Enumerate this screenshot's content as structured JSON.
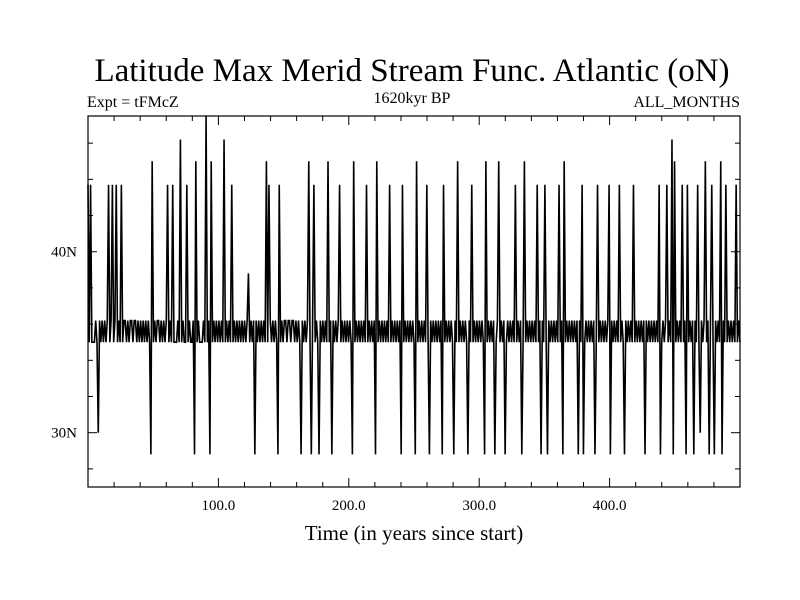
{
  "chart_data": {
    "type": "line",
    "title": "Latitude Max Merid Stream Func. Atlantic (oN)",
    "subtitle_left": "Expt = tFMcZ",
    "subtitle_center": "1620kyr BP",
    "subtitle_right": "ALL_MONTHS",
    "xlabel": "Time (in years since start)",
    "ylabel": "",
    "xlim": [
      0,
      500
    ],
    "ylim": [
      27,
      47.5
    ],
    "x_ticks": [
      100,
      200,
      300,
      400
    ],
    "x_tick_labels": [
      "100.0",
      "200.0",
      "300.0",
      "400.0"
    ],
    "y_ticks": [
      30,
      40
    ],
    "y_tick_labels": [
      "30N",
      "40N"
    ],
    "grid": false,
    "series": [
      {
        "values": [
          43.7,
          35,
          43.7,
          35,
          35,
          35,
          36.2,
          35,
          30,
          36.2,
          35,
          36.2,
          35,
          36.2,
          35,
          36.2,
          43.7,
          35,
          36.2,
          43.7,
          35,
          36.2,
          43.7,
          35,
          36.2,
          35,
          43.7,
          35,
          36.2,
          36.2,
          35,
          36.2,
          35,
          36.2,
          36.2,
          35,
          36.2,
          36.2,
          35,
          36.2,
          35,
          36.2,
          35,
          36.2,
          35,
          36.2,
          35,
          36.2,
          35,
          28.8,
          45,
          35,
          36.2,
          35,
          36.2,
          36.2,
          35,
          36.2,
          35,
          36.2,
          35,
          36.2,
          43.7,
          35,
          36.2,
          35,
          43.7,
          35,
          35,
          35,
          36.2,
          35,
          46.2,
          35,
          36.2,
          35,
          35,
          43.7,
          35,
          36.2,
          35,
          35,
          36.2,
          28.8,
          45,
          35,
          36.2,
          35,
          35,
          35,
          36.2,
          35,
          47.5,
          35,
          36.2,
          28.8,
          45,
          35,
          36.2,
          35,
          36.2,
          35,
          36.2,
          35,
          36.2,
          35,
          46.2,
          35,
          36.2,
          35,
          36.2,
          35,
          43.7,
          35,
          36.2,
          35,
          36.2,
          35,
          36.2,
          35,
          36.2,
          35,
          36.2,
          35,
          36.2,
          38.8,
          35,
          36.2,
          35,
          36.2,
          28.8,
          36.2,
          35,
          36.2,
          35,
          36.2,
          35,
          36.2,
          35,
          45,
          35,
          43.7,
          36.2,
          35,
          36.2,
          35,
          36.2,
          35,
          28.8,
          43.7,
          35,
          36.2,
          35,
          36.2,
          36.2,
          35,
          36.2,
          36.2,
          35,
          36.2,
          36.2,
          35,
          36.2,
          35,
          36.2,
          35,
          28.8,
          36.2,
          35,
          36.2,
          35,
          36.2,
          45,
          35,
          28.8,
          36.2,
          43.7,
          35,
          36.2,
          35,
          28.8,
          36.2,
          35,
          36.2,
          35,
          36.2,
          35,
          45,
          35,
          36.2,
          28.8,
          36.2,
          35,
          36.2,
          35,
          36.2,
          43.7,
          35,
          36.2,
          35,
          36.2,
          35,
          36.2,
          35,
          36.2,
          35,
          28.8,
          45,
          35,
          36.2,
          35,
          36.2,
          35,
          36.2,
          35,
          36.2,
          35,
          43.7,
          35,
          36.2,
          35,
          36.2,
          35,
          36.2,
          28.8,
          45,
          35,
          36.2,
          35,
          36.2,
          35,
          36.2,
          35,
          36.2,
          35,
          43.7,
          35,
          36.2,
          35,
          36.2,
          35,
          36.2,
          35,
          36.2,
          28.8,
          43.7,
          35,
          36.2,
          35,
          36.2,
          35,
          36.2,
          35,
          36.2,
          35,
          28.8,
          45,
          35,
          36.2,
          35,
          36.2,
          35,
          36.2,
          35,
          43.7,
          35,
          28.8,
          36.2,
          35,
          36.2,
          35,
          36.2,
          35,
          36.2,
          35,
          36.2,
          28.8,
          43.7,
          35,
          36.2,
          35,
          36.2,
          35,
          36.2,
          35,
          28.8,
          36.2,
          35,
          45,
          35,
          36.2,
          35,
          36.2,
          35,
          36.2,
          35,
          28.8,
          36.2,
          35,
          43.7,
          35,
          36.2,
          35,
          36.2,
          35,
          36.2,
          35,
          36.2,
          35,
          28.8,
          45,
          35,
          36.2,
          35,
          36.2,
          35,
          36.2,
          28.8,
          35,
          36.2,
          45,
          35,
          36.2,
          35,
          36.2,
          28.8,
          35,
          36.2,
          35,
          36.2,
          35,
          36.2,
          35,
          43.7,
          35,
          36.2,
          35,
          36.2,
          28.8,
          35,
          45,
          35,
          36.2,
          35,
          36.2,
          35,
          36.2,
          35,
          36.2,
          35,
          43.7,
          35,
          36.2,
          28.8,
          36.2,
          35,
          43.7,
          35,
          28.8,
          36.2,
          35,
          36.2,
          35,
          36.2,
          35,
          36.2,
          35,
          43.7,
          35,
          36.2,
          28.8,
          45,
          35,
          36.2,
          35,
          36.2,
          35,
          36.2,
          35,
          36.2,
          35,
          36.2,
          28.8,
          36.2,
          35,
          43.7,
          28.8,
          35,
          36.2,
          35,
          36.2,
          35,
          36.2,
          35,
          36.2,
          28.8,
          35,
          43.7,
          35,
          36.2,
          35,
          36.2,
          35,
          36.2,
          35,
          36.2,
          43.7,
          28.8,
          36.2,
          35,
          36.2,
          35,
          36.2,
          35,
          43.7,
          35,
          36.2,
          35,
          28.8,
          36.2,
          35,
          36.2,
          35,
          36.2,
          35,
          43.7,
          35,
          36.2,
          35,
          36.2,
          35,
          36.2,
          35,
          36.2,
          28.8,
          36.2,
          35,
          36.2,
          35,
          36.2,
          35,
          36.2,
          35,
          36.2,
          35,
          43.7,
          28.8,
          35,
          36.2,
          35,
          36.2,
          43.7,
          35,
          36.2,
          35,
          46.2,
          28.8,
          45,
          35,
          36.2,
          35,
          36.2,
          35,
          43.7,
          35,
          36.2,
          28.8,
          43.7,
          35,
          36.2,
          35,
          36.2,
          28.8,
          36.2,
          35,
          43.7,
          35,
          30,
          36.2,
          35,
          36.2,
          45,
          35,
          36.2,
          28.8,
          36.2,
          43.7,
          35,
          28.8,
          36.2,
          35,
          36.2,
          35,
          45,
          28.8,
          36.2,
          35,
          43.7,
          35,
          36.2,
          35,
          36.2,
          35,
          36.2,
          35,
          43.7,
          35,
          36.2,
          35
        ]
      }
    ]
  }
}
